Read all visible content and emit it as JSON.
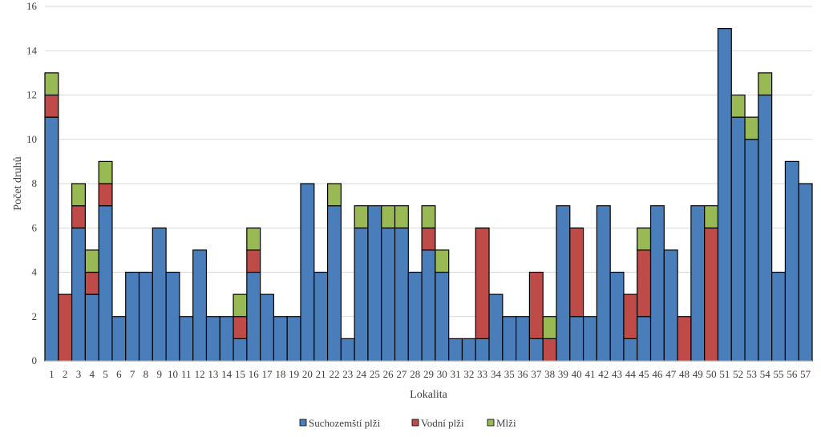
{
  "chart_data": {
    "type": "bar",
    "stacked": true,
    "title": "",
    "xlabel": "Lokalita",
    "ylabel": "Počet druhů",
    "ylim": [
      0,
      16
    ],
    "yticks": [
      0,
      2,
      4,
      6,
      8,
      10,
      12,
      14,
      16
    ],
    "grid": true,
    "legend_position": "bottom",
    "categories": [
      "1",
      "2",
      "3",
      "4",
      "5",
      "6",
      "7",
      "8",
      "9",
      "10",
      "11",
      "12",
      "13",
      "14",
      "15",
      "16",
      "17",
      "18",
      "19",
      "20",
      "21",
      "22",
      "23",
      "24",
      "25",
      "26",
      "27",
      "28",
      "29",
      "30",
      "31",
      "32",
      "33",
      "34",
      "35",
      "36",
      "37",
      "38",
      "39",
      "40",
      "41",
      "42",
      "43",
      "44",
      "45",
      "46",
      "47",
      "48",
      "49",
      "50",
      "51",
      "52",
      "53",
      "54",
      "55",
      "56",
      "57"
    ],
    "series": [
      {
        "name": "Suchozemští plži",
        "color": "#4a7ebb",
        "values": [
          11,
          0,
          6,
          3,
          7,
          2,
          4,
          4,
          6,
          4,
          2,
          5,
          2,
          2,
          1,
          4,
          3,
          2,
          2,
          8,
          4,
          7,
          1,
          6,
          7,
          6,
          6,
          4,
          5,
          4,
          1,
          1,
          1,
          3,
          2,
          2,
          1,
          0,
          7,
          2,
          2,
          7,
          4,
          1,
          2,
          7,
          5,
          0,
          7,
          0,
          15,
          11,
          10,
          12,
          4,
          9,
          8
        ]
      },
      {
        "name": "Vodní plži",
        "color": "#be4b48",
        "values": [
          1,
          3,
          1,
          1,
          1,
          0,
          0,
          0,
          0,
          0,
          0,
          0,
          0,
          0,
          1,
          1,
          0,
          0,
          0,
          0,
          0,
          0,
          0,
          0,
          0,
          0,
          0,
          0,
          1,
          0,
          0,
          0,
          5,
          0,
          0,
          0,
          3,
          1,
          0,
          4,
          0,
          0,
          0,
          2,
          3,
          0,
          0,
          2,
          0,
          6,
          0,
          0,
          0,
          0,
          0,
          0,
          0
        ]
      },
      {
        "name": "Mlži",
        "color": "#98b954",
        "values": [
          1,
          0,
          1,
          1,
          1,
          0,
          0,
          0,
          0,
          0,
          0,
          0,
          0,
          0,
          1,
          1,
          0,
          0,
          0,
          0,
          0,
          1,
          0,
          1,
          0,
          1,
          1,
          0,
          1,
          1,
          0,
          0,
          0,
          0,
          0,
          0,
          0,
          1,
          0,
          0,
          0,
          0,
          0,
          0,
          1,
          0,
          0,
          0,
          0,
          1,
          0,
          1,
          1,
          1,
          0,
          0,
          0
        ]
      }
    ]
  }
}
